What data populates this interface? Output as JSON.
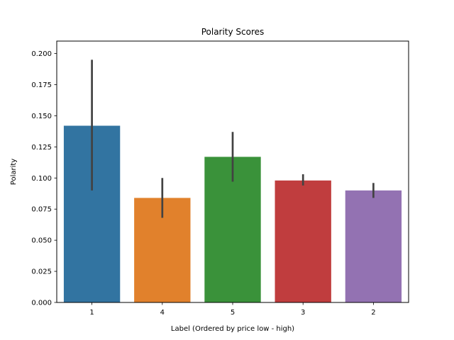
{
  "chart_data": {
    "type": "bar",
    "title": "Polarity Scores",
    "xlabel": "Label (Ordered by price low - high)",
    "ylabel": "Polarity",
    "categories": [
      "1",
      "4",
      "5",
      "3",
      "2"
    ],
    "values": [
      0.142,
      0.084,
      0.117,
      0.098,
      0.09
    ],
    "error_low": [
      0.09,
      0.068,
      0.097,
      0.094,
      0.084
    ],
    "error_high": [
      0.195,
      0.1,
      0.137,
      0.103,
      0.096
    ],
    "colors": [
      "#3274a1",
      "#e1812c",
      "#3a923a",
      "#c03d3e",
      "#9372b2"
    ],
    "error_color": "#424242",
    "ylim": [
      0,
      0.21
    ],
    "yticks": [
      {
        "value": 0.0,
        "label": "0.000"
      },
      {
        "value": 0.025,
        "label": "0.025"
      },
      {
        "value": 0.05,
        "label": "0.050"
      },
      {
        "value": 0.075,
        "label": "0.075"
      },
      {
        "value": 0.1,
        "label": "0.100"
      },
      {
        "value": 0.125,
        "label": "0.125"
      },
      {
        "value": 0.15,
        "label": "0.150"
      },
      {
        "value": 0.175,
        "label": "0.175"
      },
      {
        "value": 0.2,
        "label": "0.200"
      }
    ],
    "grid": false,
    "legend": "none"
  }
}
